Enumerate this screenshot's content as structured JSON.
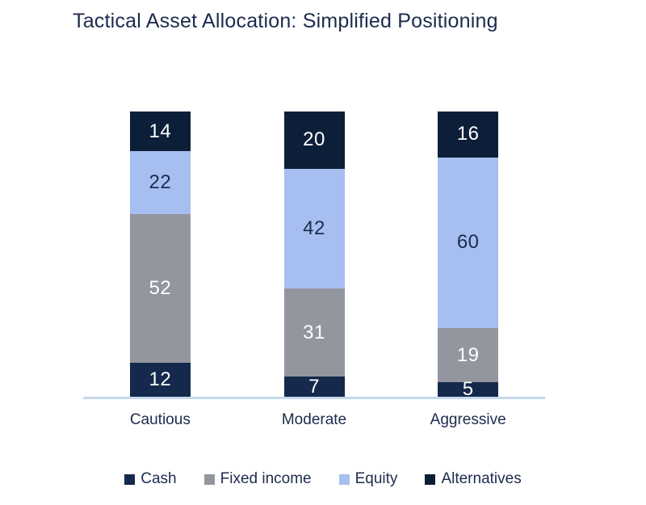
{
  "chart": {
    "title": "Tactical Asset Allocation: Simplified Positioning"
  },
  "chart_data": {
    "type": "bar",
    "stacked": true,
    "title": "Tactical Asset Allocation: Simplified Positioning",
    "categories": [
      "Cautious",
      "Moderate",
      "Aggressive"
    ],
    "series": [
      {
        "name": "Cash",
        "color": "#14294b",
        "label_color": "#ffffff",
        "values": [
          12,
          7,
          5
        ]
      },
      {
        "name": "Fixed income",
        "color": "#94969f",
        "label_color": "#ffffff",
        "values": [
          52,
          31,
          19
        ]
      },
      {
        "name": "Equity",
        "color": "#a7bff0",
        "label_color": "#1d2b4d",
        "values": [
          22,
          42,
          60
        ]
      },
      {
        "name": "Alternatives",
        "color": "#0d1f38",
        "label_color": "#ffffff",
        "values": [
          14,
          20,
          16
        ]
      }
    ],
    "xlabel": "",
    "ylabel": "",
    "ylim": [
      0,
      100
    ],
    "grid": false,
    "data_labels": true,
    "legend_position": "bottom",
    "axis_line_color": "#c5d8ec",
    "title_color": "#1d2b4d",
    "text_color": "#1d2b4d",
    "background_color": "#ffffff"
  }
}
